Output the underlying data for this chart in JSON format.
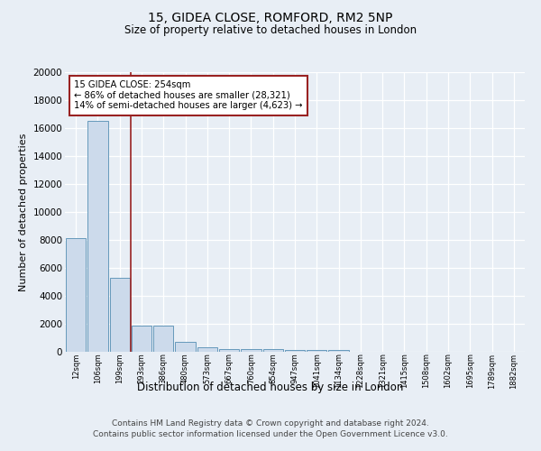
{
  "title1": "15, GIDEA CLOSE, ROMFORD, RM2 5NP",
  "title2": "Size of property relative to detached houses in London",
  "xlabel": "Distribution of detached houses by size in London",
  "ylabel": "Number of detached properties",
  "categories": [
    "12sqm",
    "106sqm",
    "199sqm",
    "293sqm",
    "386sqm",
    "480sqm",
    "573sqm",
    "667sqm",
    "760sqm",
    "854sqm",
    "947sqm",
    "1041sqm",
    "1134sqm",
    "1228sqm",
    "1321sqm",
    "1415sqm",
    "1508sqm",
    "1602sqm",
    "1695sqm",
    "1789sqm",
    "1882sqm"
  ],
  "values": [
    8100,
    16500,
    5300,
    1850,
    1850,
    700,
    300,
    220,
    210,
    180,
    155,
    150,
    130,
    0,
    0,
    0,
    0,
    0,
    0,
    0,
    0
  ],
  "bar_color": "#ccdaeb",
  "bar_edge_color": "#6699bb",
  "vline_x": 2.5,
  "vline_color": "#992222",
  "annotation_text": "15 GIDEA CLOSE: 254sqm\n← 86% of detached houses are smaller (28,321)\n14% of semi-detached houses are larger (4,623) →",
  "annotation_box_color": "white",
  "annotation_box_edge": "#992222",
  "ylim": [
    0,
    20000
  ],
  "yticks": [
    0,
    2000,
    4000,
    6000,
    8000,
    10000,
    12000,
    14000,
    16000,
    18000,
    20000
  ],
  "footer1": "Contains HM Land Registry data © Crown copyright and database right 2024.",
  "footer2": "Contains public sector information licensed under the Open Government Licence v3.0.",
  "bg_color": "#e8eef5",
  "plot_bg_color": "#e8eef5"
}
